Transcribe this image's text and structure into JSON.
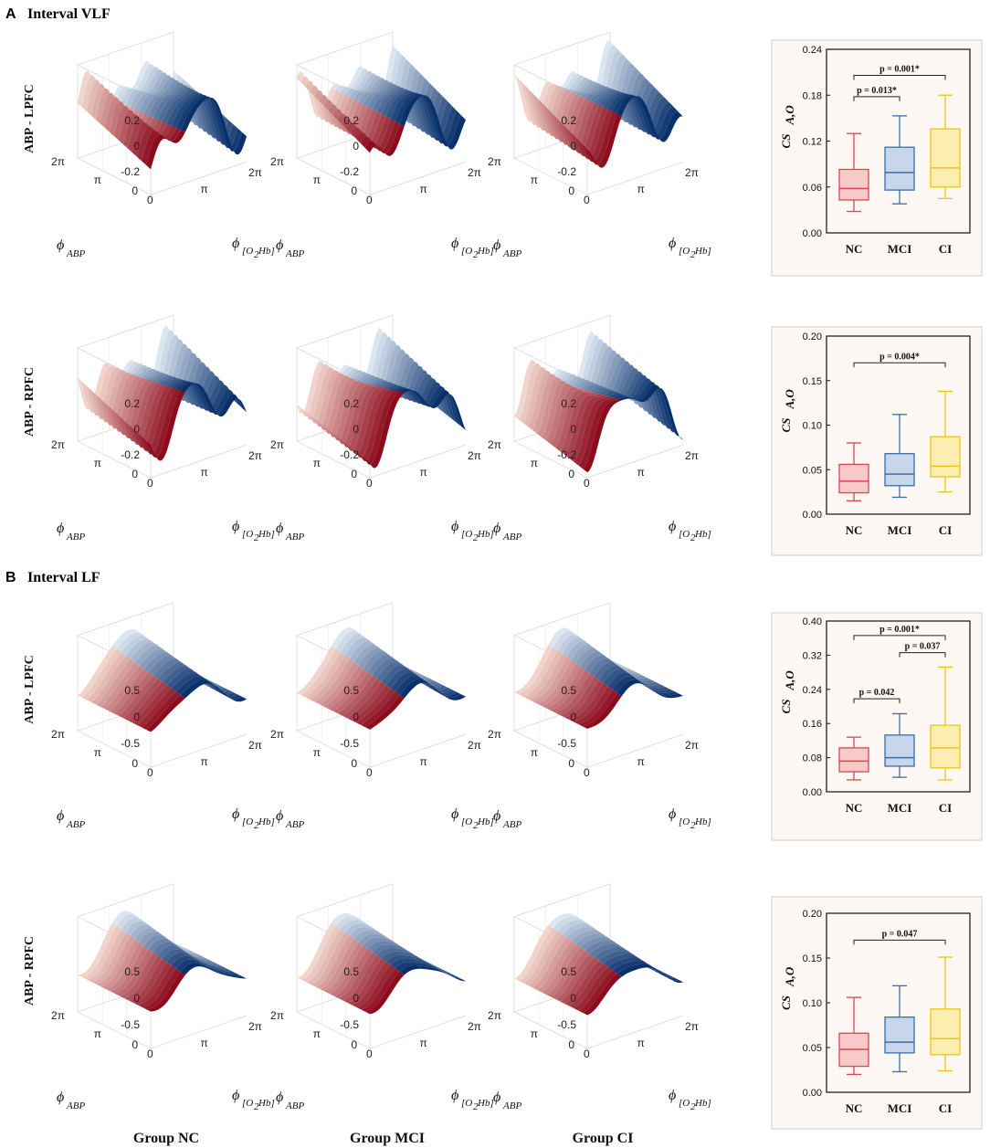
{
  "sections": [
    {
      "letter": "A",
      "title": "Interval VLF"
    },
    {
      "letter": "B",
      "title": "Interval LF"
    }
  ],
  "group_labels": [
    "Group NC",
    "Group MCI",
    "Group CI"
  ],
  "surface_axes": {
    "z_ticks_vlf": [
      "0.2",
      "0",
      "-0.2"
    ],
    "z_ticks_lf": [
      "0.5",
      "0",
      "-0.5"
    ],
    "phase_ticks": [
      "2π",
      "π",
      "0"
    ],
    "phase_ticks_right": [
      "0",
      "π",
      "2π"
    ],
    "left_axis_label": "ϕ",
    "left_axis_sub": "ABP",
    "right_axis_label": "ϕ",
    "right_axis_sub": "[O",
    "right_axis_sub2": "2",
    "right_axis_sub3": " Hb]"
  },
  "colors": {
    "nc": "#e0454d",
    "mci": "#3a6ea8",
    "ci": "#f0c419",
    "nc_fill": "#f8c9c9",
    "mci_fill": "#c8d6ec",
    "ci_fill": "#fbeeb0",
    "red_dark": "#8c0c1e",
    "blue_dark": "#08306b"
  },
  "chart_data": [
    {
      "id": "A1",
      "row_label": "ABP - LPFC",
      "interval": "VLF",
      "type": "surface3d",
      "variant": "vlf",
      "z_range": [
        -0.3,
        0.3
      ]
    },
    {
      "id": "A2",
      "row_label": "ABP - RPFC",
      "interval": "VLF",
      "type": "surface3d",
      "variant": "vlf",
      "z_range": [
        -0.3,
        0.3
      ]
    },
    {
      "id": "B1",
      "row_label": "ABP - LPFC",
      "interval": "LF",
      "type": "surface3d",
      "variant": "lf",
      "z_range": [
        -0.75,
        0.75
      ]
    },
    {
      "id": "B2",
      "row_label": "ABP - RPFC",
      "interval": "LF",
      "type": "surface3d",
      "variant": "lf",
      "z_range": [
        -0.75,
        0.75
      ]
    },
    {
      "id": "boxA1",
      "type": "box",
      "ylabel": "CS",
      "ylabel_sub": "A,O",
      "ylim": [
        0,
        0.24
      ],
      "ticks": [
        "0.00",
        "0.06",
        "0.12",
        "0.18",
        "0.24"
      ],
      "tick_values": [
        0,
        0.06,
        0.12,
        0.18,
        0.24
      ],
      "categories": [
        "NC",
        "MCI",
        "CI"
      ],
      "boxes": [
        {
          "min": 0.028,
          "q1": 0.043,
          "median": 0.058,
          "q3": 0.083,
          "max": 0.13
        },
        {
          "min": 0.038,
          "q1": 0.056,
          "median": 0.079,
          "q3": 0.112,
          "max": 0.153
        },
        {
          "min": 0.045,
          "q1": 0.06,
          "median": 0.085,
          "q3": 0.136,
          "max": 0.18
        }
      ],
      "brackets": [
        {
          "from": 0,
          "to": 2,
          "y": 0.206,
          "text": "p = 0.001*"
        },
        {
          "from": 0,
          "to": 1,
          "y": 0.178,
          "text": "p = 0.013*"
        }
      ]
    },
    {
      "id": "boxA2",
      "type": "box",
      "ylabel": "CS",
      "ylabel_sub": "A,O",
      "ylim": [
        0,
        0.2
      ],
      "ticks": [
        "0.00",
        "0.05",
        "0.10",
        "0.15",
        "0.20"
      ],
      "tick_values": [
        0,
        0.05,
        0.1,
        0.15,
        0.2
      ],
      "categories": [
        "NC",
        "MCI",
        "CI"
      ],
      "boxes": [
        {
          "min": 0.015,
          "q1": 0.024,
          "median": 0.037,
          "q3": 0.056,
          "max": 0.08
        },
        {
          "min": 0.019,
          "q1": 0.032,
          "median": 0.045,
          "q3": 0.068,
          "max": 0.112
        },
        {
          "min": 0.025,
          "q1": 0.042,
          "median": 0.054,
          "q3": 0.087,
          "max": 0.138
        }
      ],
      "brackets": [
        {
          "from": 0,
          "to": 2,
          "y": 0.17,
          "text": "p = 0.004*"
        }
      ]
    },
    {
      "id": "boxB1",
      "type": "box",
      "ylabel": "CS",
      "ylabel_sub": "A,O",
      "ylim": [
        0,
        0.4
      ],
      "ticks": [
        "0.00",
        "0.08",
        "0.16",
        "0.24",
        "0.32",
        "0.40"
      ],
      "tick_values": [
        0,
        0.08,
        0.16,
        0.24,
        0.32,
        0.4
      ],
      "categories": [
        "NC",
        "MCI",
        "CI"
      ],
      "boxes": [
        {
          "min": 0.028,
          "q1": 0.047,
          "median": 0.072,
          "q3": 0.103,
          "max": 0.128
        },
        {
          "min": 0.034,
          "q1": 0.06,
          "median": 0.08,
          "q3": 0.133,
          "max": 0.183
        },
        {
          "min": 0.028,
          "q1": 0.056,
          "median": 0.103,
          "q3": 0.156,
          "max": 0.292
        }
      ],
      "brackets": [
        {
          "from": 0,
          "to": 2,
          "y": 0.366,
          "text": "p = 0.001*"
        },
        {
          "from": 1,
          "to": 2,
          "y": 0.326,
          "text": "p = 0.037"
        },
        {
          "from": 0,
          "to": 1,
          "y": 0.218,
          "text": "p = 0.042"
        }
      ]
    },
    {
      "id": "boxB2",
      "type": "box",
      "ylabel": "CS",
      "ylabel_sub": "A,O",
      "ylim": [
        0,
        0.2
      ],
      "ticks": [
        "0.00",
        "0.05",
        "0.10",
        "0.15",
        "0.20"
      ],
      "tick_values": [
        0,
        0.05,
        0.1,
        0.15,
        0.2
      ],
      "categories": [
        "NC",
        "MCI",
        "CI"
      ],
      "boxes": [
        {
          "min": 0.02,
          "q1": 0.029,
          "median": 0.048,
          "q3": 0.066,
          "max": 0.106
        },
        {
          "min": 0.023,
          "q1": 0.044,
          "median": 0.056,
          "q3": 0.084,
          "max": 0.119
        },
        {
          "min": 0.024,
          "q1": 0.042,
          "median": 0.06,
          "q3": 0.093,
          "max": 0.151
        }
      ],
      "brackets": [
        {
          "from": 0,
          "to": 2,
          "y": 0.17,
          "text": "p = 0.047"
        }
      ]
    }
  ]
}
